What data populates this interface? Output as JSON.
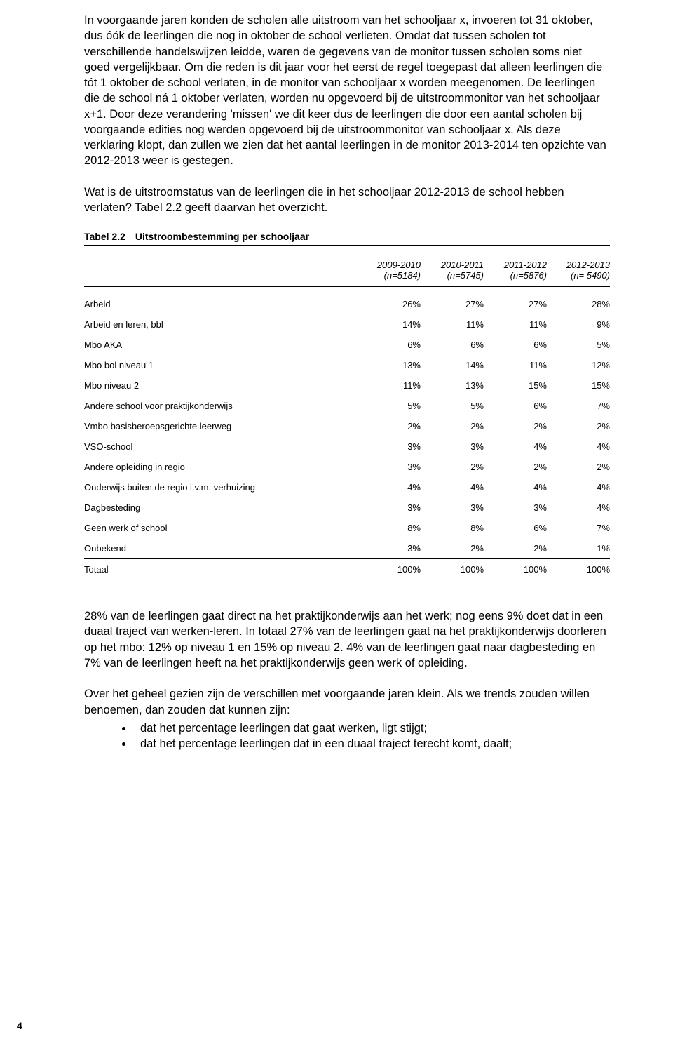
{
  "para1": "In voorgaande jaren konden de scholen alle uitstroom van het schooljaar x, invoeren tot 31 oktober, dus óók de leerlingen die nog in oktober de school verlieten. Omdat dat tussen scholen tot verschillende handelswijzen leidde, waren de gegevens van de monitor tussen scholen soms niet goed vergelijkbaar. Om die reden is dit jaar voor het eerst de regel toegepast dat alleen leerlingen die tót 1 oktober de school verlaten, in de monitor van schooljaar x worden meegenomen. De leerlingen die de school ná 1 oktober verlaten, worden nu opgevoerd bij de uitstroommonitor van het schooljaar x+1. Door deze verandering 'missen' we dit keer dus de leerlingen die door een aantal scholen bij voorgaande edities nog werden opgevoerd bij de uitstroommonitor van schooljaar x. Als deze verklaring klopt, dan zullen we zien dat het aantal leerlingen in de monitor 2013-2014 ten opzichte van 2012-2013 weer is gestegen.",
  "para2": "Wat is de uitstroomstatus van de leerlingen die in het schooljaar 2012-2013 de school hebben verlaten? Tabel 2.2 geeft daarvan het overzicht.",
  "table": {
    "caption_label": "Tabel 2.2",
    "caption_title": "Uitstroombestemming per schooljaar",
    "columns": [
      {
        "year": "2009-2010",
        "n": "(n=5184)"
      },
      {
        "year": "2010-2011",
        "n": "(n=5745)"
      },
      {
        "year": "2011-2012",
        "n": "(n=5876)"
      },
      {
        "year": "2012-2013",
        "n": "(n= 5490)"
      }
    ],
    "rows": [
      {
        "label": "Arbeid",
        "v": [
          "26%",
          "27%",
          "27%",
          "28%"
        ]
      },
      {
        "label": "Arbeid en leren, bbl",
        "v": [
          "14%",
          "11%",
          "11%",
          "9%"
        ]
      },
      {
        "label": "Mbo AKA",
        "v": [
          "6%",
          "6%",
          "6%",
          "5%"
        ]
      },
      {
        "label": "Mbo bol niveau 1",
        "v": [
          "13%",
          "14%",
          "11%",
          "12%"
        ]
      },
      {
        "label": "Mbo niveau 2",
        "v": [
          "11%",
          "13%",
          "15%",
          "15%"
        ]
      },
      {
        "label": "Andere school voor praktijkonderwijs",
        "v": [
          "5%",
          "5%",
          "6%",
          "7%"
        ]
      },
      {
        "label": "Vmbo basisberoepsgerichte leerweg",
        "v": [
          "2%",
          "2%",
          "2%",
          "2%"
        ]
      },
      {
        "label": "VSO-school",
        "v": [
          "3%",
          "3%",
          "4%",
          "4%"
        ]
      },
      {
        "label": "Andere opleiding in regio",
        "v": [
          "3%",
          "2%",
          "2%",
          "2%"
        ]
      },
      {
        "label": "Onderwijs buiten de regio i.v.m. verhuizing",
        "v": [
          "4%",
          "4%",
          "4%",
          "4%"
        ]
      },
      {
        "label": "Dagbesteding",
        "v": [
          "3%",
          "3%",
          "3%",
          "4%"
        ]
      },
      {
        "label": "Geen werk of school",
        "v": [
          "8%",
          "8%",
          "6%",
          "7%"
        ]
      },
      {
        "label": "Onbekend",
        "v": [
          "3%",
          "2%",
          "2%",
          "1%"
        ]
      }
    ],
    "total": {
      "label": "Totaal",
      "v": [
        "100%",
        "100%",
        "100%",
        "100%"
      ]
    }
  },
  "para3": "28% van de leerlingen gaat direct na het praktijkonderwijs aan het werk; nog eens 9% doet dat in een duaal traject van werken-leren. In totaal 27% van de leerlingen gaat na het praktijkonderwijs doorleren op het mbo: 12% op niveau 1 en 15% op niveau 2. 4% van de leerlingen gaat naar dagbesteding en 7% van de leerlingen heeft na het praktijkonderwijs geen werk of opleiding.",
  "para4": "Over het geheel gezien zijn de verschillen met voorgaande jaren klein. Als we trends zouden willen benoemen, dan zouden dat kunnen zijn:",
  "bullets": [
    "dat het percentage leerlingen dat gaat werken, ligt stijgt;",
    "dat het percentage leerlingen dat in een duaal traject terecht komt, daalt;"
  ],
  "page_number": "4"
}
